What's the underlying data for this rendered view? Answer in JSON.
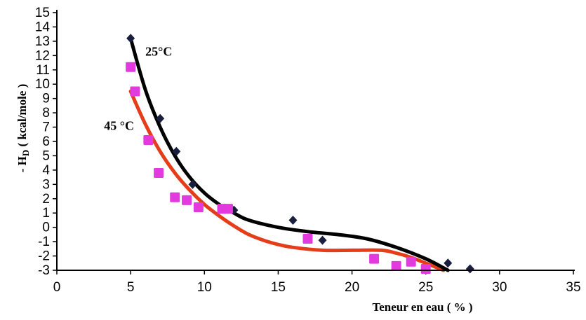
{
  "chart_data": {
    "type": "scatter",
    "xlabel": "Teneur en eau ( % )",
    "ylabel": "- H",
    "ylabel_subscript": "D",
    "ylabel_suffix": " ( kcal/mole )",
    "xlim": [
      0,
      35
    ],
    "ylim": [
      -3,
      15
    ],
    "xticks": [
      0,
      5,
      10,
      15,
      20,
      25,
      30,
      35
    ],
    "yticks": [
      -3,
      -2,
      -1,
      0,
      1,
      2,
      3,
      4,
      5,
      6,
      7,
      8,
      9,
      10,
      11,
      12,
      13,
      14,
      15
    ],
    "grid": false,
    "series": [
      {
        "name": "25°C",
        "marker": "diamond",
        "color": "#1a1f3f",
        "curve_color": "#000000",
        "points": [
          [
            5.0,
            13.2
          ],
          [
            7.0,
            7.6
          ],
          [
            8.1,
            5.3
          ],
          [
            9.2,
            3.0
          ],
          [
            12.0,
            1.2
          ],
          [
            16.0,
            0.5
          ],
          [
            18.0,
            -0.9
          ],
          [
            26.5,
            -2.5
          ],
          [
            28.0,
            -2.9
          ]
        ],
        "curve": [
          [
            5.0,
            13.2
          ],
          [
            6.0,
            9.6
          ],
          [
            7.0,
            7.0
          ],
          [
            8.0,
            5.0
          ],
          [
            9.0,
            3.5
          ],
          [
            10.0,
            2.4
          ],
          [
            11.0,
            1.6
          ],
          [
            12.0,
            1.0
          ],
          [
            13.0,
            0.5
          ],
          [
            15.0,
            0.0
          ],
          [
            17.0,
            -0.3
          ],
          [
            19.0,
            -0.5
          ],
          [
            21.0,
            -0.8
          ],
          [
            23.0,
            -1.4
          ],
          [
            25.0,
            -2.2
          ],
          [
            26.5,
            -3.0
          ]
        ]
      },
      {
        "name": "45 °C",
        "marker": "square",
        "color": "#e33ae0",
        "curve_color": "#e53d1a",
        "points": [
          [
            5.0,
            11.2
          ],
          [
            5.3,
            9.5
          ],
          [
            6.2,
            6.1
          ],
          [
            6.9,
            3.8
          ],
          [
            8.0,
            2.1
          ],
          [
            8.8,
            1.9
          ],
          [
            9.6,
            1.4
          ],
          [
            11.2,
            1.3
          ],
          [
            11.6,
            1.3
          ],
          [
            17.0,
            -0.8
          ],
          [
            21.5,
            -2.2
          ],
          [
            23.0,
            -2.7
          ],
          [
            24.0,
            -2.4
          ],
          [
            25.0,
            -2.9
          ]
        ],
        "curve": [
          [
            5.0,
            9.5
          ],
          [
            6.0,
            7.2
          ],
          [
            7.0,
            5.3
          ],
          [
            8.0,
            3.8
          ],
          [
            9.0,
            2.6
          ],
          [
            10.0,
            1.6
          ],
          [
            11.0,
            0.8
          ],
          [
            12.0,
            0.1
          ],
          [
            13.0,
            -0.5
          ],
          [
            14.0,
            -0.9
          ],
          [
            15.0,
            -1.2
          ],
          [
            16.0,
            -1.4
          ],
          [
            18.0,
            -1.6
          ],
          [
            20.0,
            -1.6
          ],
          [
            22.0,
            -1.6
          ],
          [
            23.0,
            -1.8
          ],
          [
            24.0,
            -2.1
          ],
          [
            25.0,
            -2.5
          ],
          [
            26.2,
            -3.0
          ]
        ]
      }
    ],
    "annotations": [
      {
        "text": "25°C",
        "x": 6.0,
        "y": 12.0
      },
      {
        "text": "45 °C",
        "x": 3.2,
        "y": 6.8
      }
    ]
  }
}
